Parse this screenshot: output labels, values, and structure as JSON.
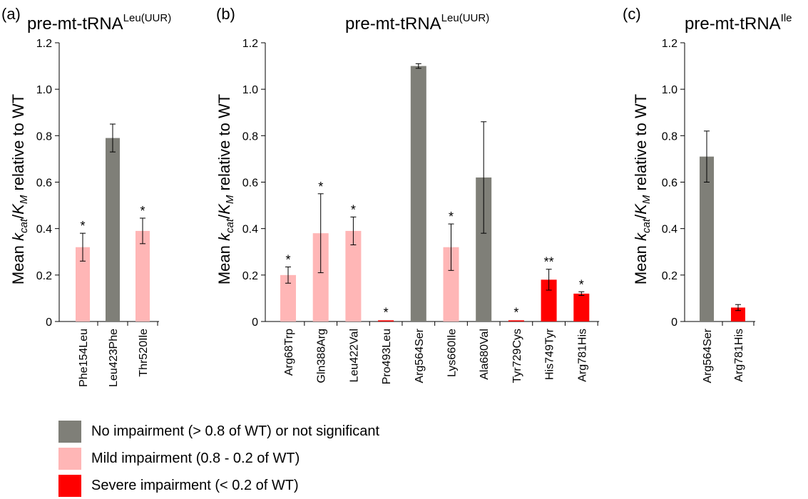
{
  "legend": [
    {
      "label": "No impairment (> 0.8 of WT) or not significant",
      "color": "#7f7f78"
    },
    {
      "label": "Mild impairment (0.8 - 0.2 of WT)",
      "color": "#ffb6b6"
    },
    {
      "label": "Severe impairment (< 0.2 of WT)",
      "color": "#ff0000"
    }
  ],
  "chart_data": [
    {
      "type": "bar",
      "panel_label": "(a)",
      "title": {
        "main": "pre-mt-tRNA",
        "superscript": "Leu(UUR)"
      },
      "ylabel": "Mean kcat/KM relative to WT",
      "ylim": [
        0,
        1.2
      ],
      "yticks": [
        "0",
        "0.2",
        "0.4",
        "0.6",
        "0.8",
        "1.0",
        "1.2"
      ],
      "categories": [
        "Phe154Leu",
        "Leu423Phe",
        "Thr520Ile"
      ],
      "values": [
        0.32,
        0.79,
        0.39
      ],
      "error": [
        0.06,
        0.06,
        0.055
      ],
      "significance": [
        "*",
        "",
        "*"
      ],
      "impairment": [
        "mild",
        "none",
        "mild"
      ]
    },
    {
      "type": "bar",
      "panel_label": "(b)",
      "title": {
        "main": "pre-mt-tRNA",
        "superscript": "Leu(UUR)"
      },
      "ylabel": "Mean kcat/KM relative to WT",
      "ylim": [
        0,
        1.2
      ],
      "yticks": [
        "0",
        "0.2",
        "0.4",
        "0.6",
        "0.8",
        "1.0",
        "1.2"
      ],
      "categories": [
        "Arg68Trp",
        "Gln388Arg",
        "Leu422Val",
        "Pro493Leu",
        "Arg564Ser",
        "Lys660Ile",
        "Ala680Val",
        "Tyr729Cys",
        "His749Tyr",
        "Arg781His"
      ],
      "values": [
        0.2,
        0.38,
        0.39,
        0.005,
        1.1,
        0.32,
        0.62,
        0.005,
        0.18,
        0.12
      ],
      "error": [
        0.035,
        0.17,
        0.06,
        0.002,
        0.01,
        0.1,
        0.24,
        0.002,
        0.045,
        0.008
      ],
      "significance": [
        "*",
        "*",
        "*",
        "*",
        "",
        "*",
        "",
        "*",
        "**",
        "*"
      ],
      "impairment": [
        "mild",
        "mild",
        "mild",
        "severe",
        "none",
        "mild",
        "none",
        "severe",
        "severe",
        "severe"
      ]
    },
    {
      "type": "bar",
      "panel_label": "(c)",
      "title": {
        "main": "pre-mt-tRNA",
        "superscript": "Ile"
      },
      "ylabel": "Mean kcat/KM relative to WT",
      "ylim": [
        0,
        1.2
      ],
      "yticks": [
        "0",
        "0.2",
        "0.4",
        "0.6",
        "0.8",
        "1.0",
        "1.2"
      ],
      "categories": [
        "Arg564Ser",
        "Arg781His"
      ],
      "values": [
        0.71,
        0.06
      ],
      "error": [
        0.11,
        0.013
      ],
      "significance": [
        "",
        ""
      ],
      "impairment": [
        "none",
        "severe"
      ]
    }
  ]
}
